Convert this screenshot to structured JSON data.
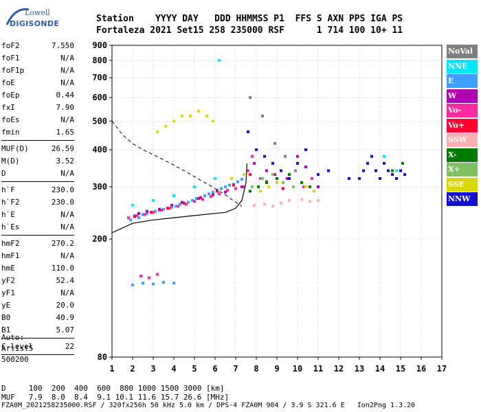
{
  "logo": {
    "line1": "Lowell",
    "line2": "DIGISONDE"
  },
  "header": {
    "row1": "Station    YYYY DAY   DDD HHMMSS P1  FFS S AXN PPS IGA PS",
    "row2": "Fortaleza 2021 Set15 258 235000 RSF      1 714 100 10+ 11"
  },
  "params": {
    "group1": [
      {
        "k": "foF2",
        "v": "7.550"
      },
      {
        "k": "foF1",
        "v": "N/A"
      },
      {
        "k": "foF1p",
        "v": "N/A"
      },
      {
        "k": "foE",
        "v": "N/A"
      },
      {
        "k": "foEp",
        "v": "0.44"
      },
      {
        "k": "fxI",
        "v": "7.90"
      },
      {
        "k": "foEs",
        "v": "N/A"
      },
      {
        "k": "fmin",
        "v": "1.65"
      }
    ],
    "group2": [
      {
        "k": "MUF(D)",
        "v": "26.59"
      },
      {
        "k": "M(D)",
        "v": "3.52"
      },
      {
        "k": "D",
        "v": "N/A"
      }
    ],
    "group3": [
      {
        "k": "h`F",
        "v": "230.0"
      },
      {
        "k": "h`F2",
        "v": "230.0"
      },
      {
        "k": "h`E",
        "v": "N/A"
      },
      {
        "k": "h`Es",
        "v": "N/A"
      }
    ],
    "group4": [
      {
        "k": "hmF2",
        "v": "270.2"
      },
      {
        "k": "hmF1",
        "v": "N/A"
      },
      {
        "k": "hmE",
        "v": "110.0"
      },
      {
        "k": "yF2",
        "v": "52.4"
      },
      {
        "k": "yF1",
        "v": "N/A"
      },
      {
        "k": "yE",
        "v": "20.0"
      },
      {
        "k": "B0",
        "v": "40.9"
      },
      {
        "k": "B1",
        "v": "5.07"
      }
    ],
    "group5": [
      {
        "k": "C-level",
        "v": "22"
      }
    ]
  },
  "autoscaling": {
    "line1": "Auto:",
    "line2": "Artist5",
    "line3": "500200"
  },
  "legend": [
    {
      "label": "NoVal",
      "color": "#808080"
    },
    {
      "label": "NNE",
      "color": "#00e5ff"
    },
    {
      "label": "E",
      "color": "#3ba0ff"
    },
    {
      "label": "W",
      "color": "#b000b0"
    },
    {
      "label": "Vo-",
      "color": "#ff2aa0"
    },
    {
      "label": "Vo+",
      "color": "#ff0030"
    },
    {
      "label": "SSW",
      "color": "#ffb0b0"
    },
    {
      "label": "X-",
      "color": "#007a00"
    },
    {
      "label": "X+",
      "color": "#80c060"
    },
    {
      "label": "SSE",
      "color": "#d8d800"
    },
    {
      "label": "NNW",
      "color": "#1010d0"
    }
  ],
  "muf_table": {
    "row1": "D     100  200  400  600  800 1000 1500 3000 [km]",
    "row2": "MUF   7.9  8.0  8.4  9.1 10.1 11.6 15.7 26.6 [MHz]"
  },
  "footer": "FZA0M_2021258235000.RSF / 320fx256h 50 kHz 5.0 km / DPS-4 FZA0M 904 / 3.9 S 321.6 E   Ion2Png 1.3.20",
  "chart_data": {
    "type": "scatter",
    "xlim": [
      1,
      17
    ],
    "ylim": [
      80,
      900
    ],
    "yscale": "log",
    "xticks": [
      1,
      2,
      3,
      4,
      5,
      6,
      7,
      8,
      9,
      10,
      11,
      12,
      13,
      14,
      15,
      16,
      17
    ],
    "yticks": [
      80,
      200,
      300,
      400,
      500,
      600,
      700,
      800,
      900
    ],
    "grid": "dotted",
    "series": [
      {
        "name": "E",
        "color": "#3ba0ff",
        "x": [
          1.9,
          2.1,
          2.3,
          2.5,
          2.7,
          2.9,
          3.1,
          3.3,
          3.5,
          3.7,
          3.9,
          4.1,
          4.3,
          4.5,
          4.7,
          4.9,
          5.1,
          5.3,
          5.5,
          5.7,
          5.9,
          6.1,
          6.3,
          6.5,
          6.7,
          6.9,
          7.1,
          7.3,
          2.0,
          2.5,
          3.0,
          3.5,
          4.0
        ],
        "y": [
          232,
          240,
          236,
          242,
          244,
          246,
          248,
          250,
          252,
          254,
          256,
          258,
          262,
          264,
          266,
          270,
          274,
          276,
          280,
          284,
          288,
          292,
          296,
          300,
          304,
          306,
          312,
          318,
          140,
          142,
          141,
          143,
          142
        ]
      },
      {
        "name": "Vo-",
        "color": "#ff2aa0",
        "x": [
          1.8,
          2.2,
          2.6,
          3.0,
          3.4,
          3.8,
          4.2,
          4.6,
          5.0,
          5.4,
          5.8,
          6.2,
          6.6,
          7.0,
          7.4,
          7.6,
          7.8,
          8.2,
          8.6,
          9.0,
          2.4,
          2.8,
          3.2,
          10.3,
          10.7
        ],
        "y": [
          236,
          240,
          242,
          246,
          250,
          254,
          258,
          262,
          268,
          272,
          278,
          284,
          292,
          296,
          300,
          340,
          380,
          320,
          300,
          310,
          150,
          148,
          152,
          300,
          320
        ]
      },
      {
        "name": "Vo+",
        "color": "#ff0030",
        "x": [
          2.1,
          2.9,
          3.7,
          4.5,
          5.3,
          6.1,
          6.9,
          7.7,
          8.5,
          9.3
        ],
        "y": [
          238,
          246,
          254,
          264,
          276,
          290,
          304,
          330,
          312,
          296
        ]
      },
      {
        "name": "W",
        "color": "#b000b0",
        "x": [
          2.3,
          2.7,
          3.3,
          3.9,
          4.4,
          5.2,
          5.9,
          6.5,
          7.3,
          7.9,
          8.5,
          8.9,
          9.5,
          10.0,
          10.4,
          11.0
        ],
        "y": [
          244,
          248,
          252,
          260,
          266,
          274,
          282,
          288,
          300,
          360,
          340,
          330,
          320,
          380,
          350,
          300
        ]
      },
      {
        "name": "NNE",
        "color": "#00e5ff",
        "x": [
          2.0,
          3.0,
          4.0,
          5.0,
          6.0,
          6.2,
          13.4,
          14.2,
          14.8
        ],
        "y": [
          260,
          270,
          280,
          300,
          320,
          800,
          360,
          380,
          340
        ]
      },
      {
        "name": "SSE",
        "color": "#d8d800",
        "x": [
          3.2,
          3.6,
          4.0,
          4.4,
          4.8,
          5.2,
          5.6,
          5.9,
          6.8,
          7.4,
          7.8,
          8.2,
          8.6,
          9.0,
          10.4,
          10.8
        ],
        "y": [
          460,
          480,
          500,
          520,
          520,
          540,
          520,
          500,
          320,
          330,
          300,
          290,
          300,
          310,
          300,
          290
        ]
      },
      {
        "name": "SSW",
        "color": "#ffb0b0",
        "x": [
          7.9,
          8.4,
          8.8,
          9.2,
          9.6,
          10.2,
          10.6,
          11.0
        ],
        "y": [
          260,
          262,
          258,
          264,
          270,
          272,
          268,
          270
        ]
      },
      {
        "name": "X-",
        "color": "#007a00",
        "x": [
          7.7,
          8.1,
          8.5,
          9.0,
          9.6,
          10.2,
          10.6,
          14.6,
          15.1
        ],
        "y": [
          290,
          300,
          310,
          320,
          330,
          310,
          300,
          340,
          360
        ]
      },
      {
        "name": "X+",
        "color": "#80c060",
        "x": [
          7.8,
          8.3,
          8.8,
          9.3,
          9.8
        ],
        "y": [
          300,
          320,
          330,
          310,
          300
        ]
      },
      {
        "name": "NNW",
        "color": "#1010d0",
        "x": [
          7.6,
          8.0,
          8.4,
          8.8,
          9.2,
          9.6,
          10.0,
          10.4,
          11.0,
          11.5,
          12.5,
          13.0,
          13.2,
          13.4,
          13.6,
          13.8,
          14.0,
          14.2,
          14.4,
          14.6,
          14.8,
          15.0,
          15.2
        ],
        "y": [
          460,
          400,
          380,
          360,
          340,
          320,
          360,
          400,
          330,
          340,
          320,
          320,
          340,
          360,
          380,
          340,
          320,
          360,
          340,
          330,
          320,
          340,
          330
        ]
      },
      {
        "name": "NoVal",
        "color": "#808080",
        "x": [
          7.7,
          8.3,
          8.9,
          9.4,
          9.9
        ],
        "y": [
          600,
          520,
          420,
          380,
          340
        ]
      }
    ],
    "profile": {
      "name": "profile",
      "x": [
        1.0,
        2.0,
        3.0,
        4.0,
        5.0,
        6.0,
        6.5,
        7.0,
        7.3,
        7.5,
        7.55
      ],
      "y": [
        210,
        226,
        232,
        236,
        240,
        244,
        246,
        254,
        270,
        310,
        360
      ]
    },
    "dashed": {
      "name": "dashed",
      "x": [
        1.0,
        1.5,
        2.0,
        2.5,
        3.0,
        3.5,
        4.0,
        4.5,
        5.0,
        5.5,
        6.0,
        6.5,
        7.0,
        7.3
      ],
      "y": [
        500,
        450,
        420,
        400,
        385,
        370,
        355,
        340,
        325,
        310,
        296,
        282,
        266,
        258
      ]
    }
  }
}
